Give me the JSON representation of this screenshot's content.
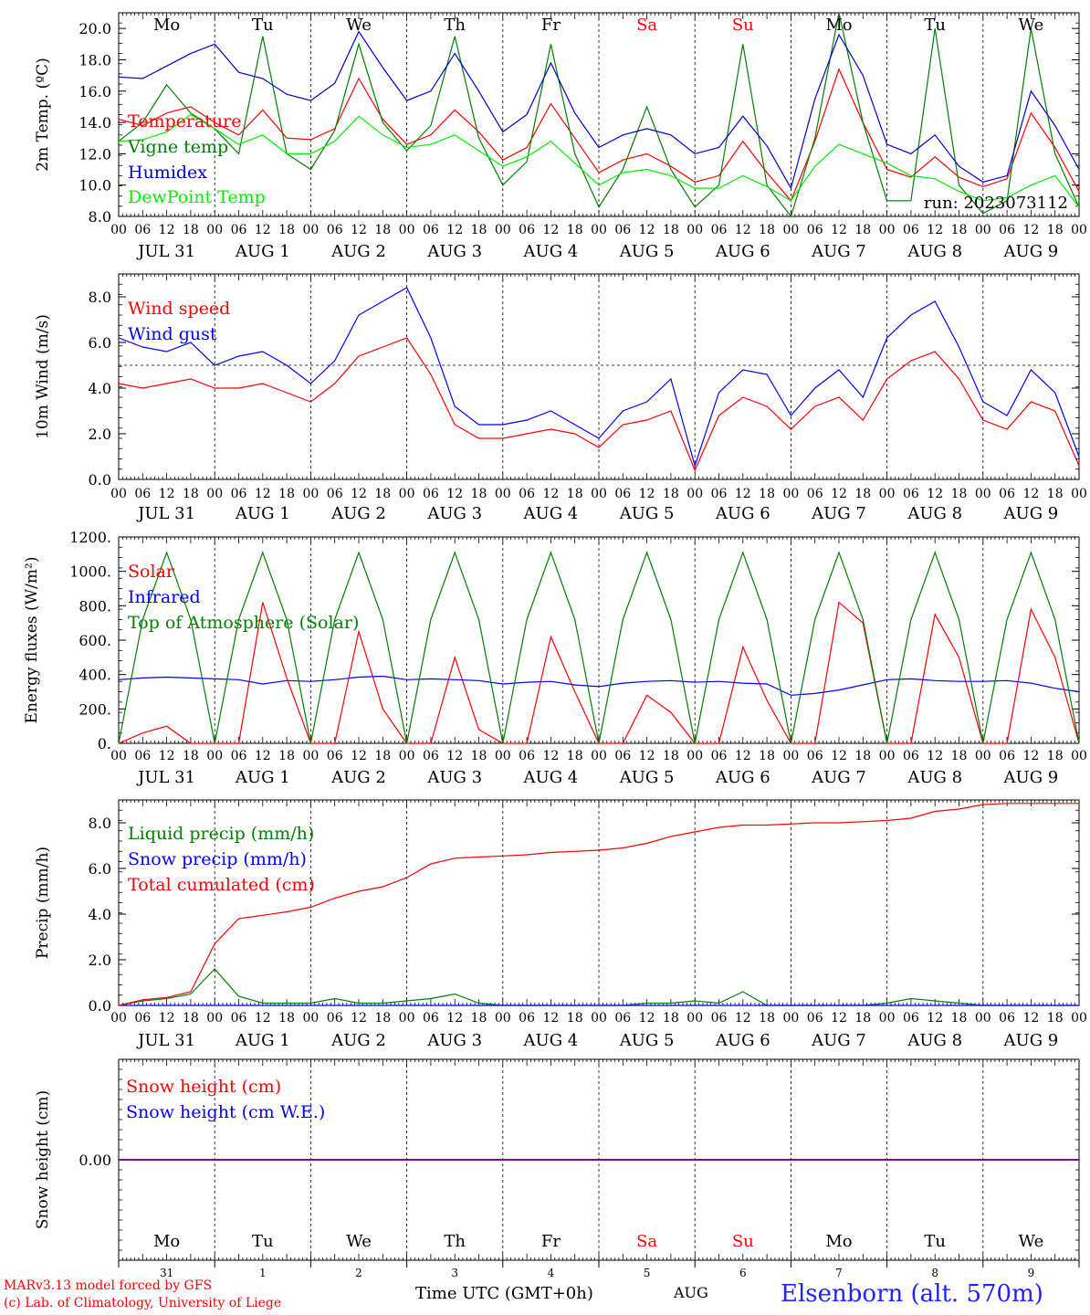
{
  "x_ticks": [
    "00",
    "06",
    "12",
    "18"
  ],
  "x_end_tick": "00",
  "date_labels": [
    "JUL 31",
    "AUG  1",
    "AUG  2",
    "AUG  3",
    "AUG  4",
    "AUG  5",
    "AUG  6",
    "AUG  7",
    "AUG  8",
    "AUG  9"
  ],
  "day_names": [
    {
      "label": "Mo",
      "color": "#000000"
    },
    {
      "label": "Tu",
      "color": "#000000"
    },
    {
      "label": "We",
      "color": "#000000"
    },
    {
      "label": "Th",
      "color": "#000000"
    },
    {
      "label": "Fr",
      "color": "#000000"
    },
    {
      "label": "Sa",
      "color": "#ff0000"
    },
    {
      "label": "Su",
      "color": "#ff0000"
    },
    {
      "label": "Mo",
      "color": "#000000"
    },
    {
      "label": "Tu",
      "color": "#000000"
    },
    {
      "label": "We",
      "color": "#000000"
    }
  ],
  "day_numbers": [
    "31",
    "1",
    "2",
    "3",
    "4",
    "5",
    "6",
    "7",
    "8",
    "9"
  ],
  "footer": {
    "credit_line1": "MARv3.13 model forced by GFS",
    "credit_line2": "(c) Lab. of Climatology, University of Liege",
    "time_label": "Time UTC (GMT+0h)",
    "month_label": "AUG",
    "station": "Elsenborn (alt. 570m)"
  },
  "chart_data": [
    {
      "type": "line",
      "ylabel": "2m Temp. (ºC)",
      "ylim": [
        8,
        21
      ],
      "yticks": [
        "8.0",
        "10.0",
        "12.0",
        "14.0",
        "16.0",
        "18.0",
        "20.0"
      ],
      "annotation": "run: 2023073112",
      "x": [
        0,
        6,
        12,
        18,
        24,
        30,
        36,
        42,
        48,
        54,
        60,
        66,
        72,
        78,
        84,
        90,
        96,
        102,
        108,
        114,
        120,
        126,
        132,
        138,
        144,
        150,
        156,
        162,
        168,
        174,
        180,
        186,
        192,
        198,
        204,
        210,
        216,
        222,
        228,
        234,
        240
      ],
      "series": [
        {
          "name": "Temperature",
          "color": "#ff0000",
          "values": [
            14.2,
            13.8,
            14.6,
            15.0,
            14.0,
            13.2,
            14.8,
            13.0,
            12.9,
            13.6,
            16.8,
            14.2,
            12.6,
            13.2,
            14.8,
            13.4,
            11.6,
            12.4,
            15.2,
            13.0,
            10.8,
            11.6,
            12.0,
            11.2,
            10.2,
            10.6,
            12.8,
            10.8,
            9.0,
            12.8,
            17.4,
            14.0,
            11.0,
            10.5,
            11.8,
            10.5,
            9.9,
            10.4,
            14.6,
            12.4,
            9.6
          ]
        },
        {
          "name": "Vigne temp",
          "color": "#008000",
          "values": [
            12.8,
            14.0,
            16.4,
            14.6,
            13.6,
            12.0,
            19.5,
            12.0,
            11.0,
            13.5,
            19.0,
            14.0,
            12.2,
            13.8,
            19.5,
            13.0,
            10.0,
            11.5,
            19.0,
            12.0,
            8.6,
            11.0,
            15.0,
            11.0,
            8.6,
            10.0,
            19.0,
            10.0,
            8.0,
            13.0,
            21.0,
            14.0,
            9.0,
            9.0,
            20.0,
            10.0,
            8.2,
            9.0,
            20.0,
            12.0,
            8.6
          ]
        },
        {
          "name": "Humidex",
          "color": "#0000cc",
          "values": [
            16.9,
            16.8,
            17.6,
            18.4,
            19.0,
            17.2,
            16.8,
            15.8,
            15.4,
            16.5,
            19.8,
            17.5,
            15.4,
            16.0,
            18.4,
            16.0,
            13.4,
            14.5,
            17.8,
            14.6,
            12.4,
            13.2,
            13.6,
            13.2,
            12.0,
            12.4,
            14.4,
            12.5,
            9.8,
            15.5,
            19.6,
            17.0,
            12.6,
            12.0,
            13.2,
            11.2,
            10.2,
            10.6,
            16.0,
            13.8,
            11.0
          ]
        },
        {
          "name": "DewPoint Temp",
          "color": "#00ee00",
          "values": [
            12.8,
            12.9,
            13.4,
            14.5,
            13.6,
            12.6,
            13.2,
            12.0,
            12.0,
            12.8,
            14.4,
            13.2,
            12.4,
            12.6,
            13.2,
            12.2,
            11.2,
            11.8,
            12.8,
            11.4,
            10.0,
            10.8,
            11.0,
            10.6,
            9.8,
            9.8,
            10.6,
            9.9,
            9.0,
            11.2,
            12.6,
            12.0,
            11.4,
            10.6,
            10.4,
            9.6,
            9.0,
            9.2,
            10.0,
            10.6,
            8.6
          ]
        }
      ]
    },
    {
      "type": "line",
      "ylabel": "10m Wind (m/s)",
      "ylim": [
        0,
        9
      ],
      "yticks": [
        "0.0",
        "2.0",
        "4.0",
        "6.0",
        "8.0"
      ],
      "reference_line": 5.0,
      "x": [
        0,
        6,
        12,
        18,
        24,
        30,
        36,
        42,
        48,
        54,
        60,
        66,
        72,
        78,
        84,
        90,
        96,
        102,
        108,
        114,
        120,
        126,
        132,
        138,
        144,
        150,
        156,
        162,
        168,
        174,
        180,
        186,
        192,
        198,
        204,
        210,
        216,
        222,
        228,
        234,
        240
      ],
      "series": [
        {
          "name": "Wind speed",
          "color": "#ff0000",
          "values": [
            4.2,
            4.0,
            4.2,
            4.4,
            4.0,
            4.0,
            4.2,
            3.8,
            3.4,
            4.2,
            5.4,
            5.8,
            6.2,
            4.6,
            2.4,
            1.8,
            1.8,
            2.0,
            2.2,
            2.0,
            1.4,
            2.4,
            2.6,
            3.0,
            0.4,
            2.8,
            3.6,
            3.2,
            2.2,
            3.2,
            3.6,
            2.6,
            4.4,
            5.2,
            5.6,
            4.4,
            2.6,
            2.2,
            3.4,
            3.0,
            0.6
          ]
        },
        {
          "name": "Wind gust",
          "color": "#0000ff",
          "values": [
            6.2,
            5.8,
            5.6,
            6.0,
            5.0,
            5.4,
            5.6,
            5.0,
            4.2,
            5.2,
            7.2,
            7.8,
            8.4,
            6.2,
            3.2,
            2.4,
            2.4,
            2.6,
            3.0,
            2.4,
            1.8,
            3.0,
            3.4,
            4.4,
            0.6,
            3.8,
            4.8,
            4.6,
            2.8,
            4.0,
            4.8,
            3.6,
            6.2,
            7.2,
            7.8,
            5.8,
            3.4,
            2.8,
            4.8,
            3.8,
            1.0
          ]
        }
      ]
    },
    {
      "type": "line",
      "ylabel": "Energy fluxes (W/m²)",
      "ylim": [
        0,
        1200
      ],
      "yticks": [
        "0.",
        "200.",
        "400.",
        "600.",
        "800.",
        "1000.",
        "1200."
      ],
      "x": [
        0,
        6,
        12,
        18,
        24,
        30,
        36,
        42,
        48,
        54,
        60,
        66,
        72,
        78,
        84,
        90,
        96,
        102,
        108,
        114,
        120,
        126,
        132,
        138,
        144,
        150,
        156,
        162,
        168,
        174,
        180,
        186,
        192,
        198,
        204,
        210,
        216,
        222,
        228,
        234,
        240
      ],
      "series": [
        {
          "name": "Solar",
          "color": "#ff0000",
          "values": [
            0,
            60,
            100,
            0,
            0,
            0,
            820,
            380,
            0,
            0,
            650,
            200,
            0,
            0,
            500,
            80,
            0,
            0,
            620,
            300,
            0,
            0,
            280,
            180,
            0,
            0,
            560,
            250,
            0,
            0,
            820,
            700,
            0,
            0,
            750,
            500,
            0,
            0,
            780,
            500,
            0
          ]
        },
        {
          "name": "Infrared",
          "color": "#0000ff",
          "values": [
            370,
            380,
            385,
            380,
            375,
            370,
            345,
            365,
            360,
            370,
            385,
            390,
            370,
            375,
            370,
            365,
            345,
            355,
            360,
            340,
            330,
            350,
            360,
            365,
            355,
            360,
            350,
            345,
            280,
            290,
            310,
            340,
            370,
            375,
            365,
            360,
            360,
            365,
            350,
            320,
            300
          ]
        },
        {
          "name": "Top of Atmosphere (Solar)",
          "color": "#008000",
          "values": [
            0,
            720,
            1110,
            720,
            0,
            720,
            1110,
            720,
            0,
            720,
            1110,
            720,
            0,
            720,
            1110,
            720,
            0,
            720,
            1110,
            720,
            0,
            720,
            1110,
            720,
            0,
            720,
            1110,
            720,
            0,
            720,
            1110,
            720,
            0,
            720,
            1110,
            720,
            0,
            720,
            1110,
            720,
            0
          ]
        }
      ]
    },
    {
      "type": "line",
      "ylabel": "Precip (mm/h)",
      "ylim": [
        0,
        9
      ],
      "yticks": [
        "0.0",
        "2.0",
        "4.0",
        "6.0",
        "8.0"
      ],
      "x": [
        0,
        6,
        12,
        18,
        24,
        30,
        36,
        42,
        48,
        54,
        60,
        66,
        72,
        78,
        84,
        90,
        96,
        102,
        108,
        114,
        120,
        126,
        132,
        138,
        144,
        150,
        156,
        162,
        168,
        174,
        180,
        186,
        192,
        198,
        204,
        210,
        216,
        222,
        228,
        234,
        240
      ],
      "series": [
        {
          "name": "Liquid precip (mm/h)",
          "color": "#008000",
          "values": [
            0,
            0.2,
            0.3,
            0.5,
            1.6,
            0.4,
            0.1,
            0.1,
            0.1,
            0.3,
            0.1,
            0.1,
            0.2,
            0.3,
            0.5,
            0.1,
            0,
            0,
            0,
            0,
            0,
            0,
            0.1,
            0.1,
            0.2,
            0.1,
            0.6,
            0,
            0,
            0,
            0,
            0,
            0.1,
            0.3,
            0.2,
            0.1,
            0,
            0,
            0,
            0,
            0
          ]
        },
        {
          "name": "Snow precip (mm/h)",
          "color": "#0000ff",
          "values": [
            0,
            0,
            0,
            0,
            0,
            0,
            0,
            0,
            0,
            0,
            0,
            0,
            0,
            0,
            0,
            0,
            0,
            0,
            0,
            0,
            0,
            0,
            0,
            0,
            0,
            0,
            0,
            0,
            0,
            0,
            0,
            0,
            0,
            0,
            0,
            0,
            0,
            0,
            0,
            0,
            0
          ]
        },
        {
          "name": "Total cumulated (cm)",
          "color": "#ff0000",
          "values": [
            0,
            0.25,
            0.35,
            0.6,
            2.7,
            3.8,
            3.95,
            4.1,
            4.3,
            4.7,
            5.0,
            5.2,
            5.6,
            6.2,
            6.45,
            6.5,
            6.55,
            6.6,
            6.7,
            6.75,
            6.8,
            6.9,
            7.1,
            7.4,
            7.6,
            7.8,
            7.9,
            7.9,
            7.95,
            8.0,
            8.0,
            8.05,
            8.1,
            8.2,
            8.5,
            8.6,
            8.8,
            8.85,
            8.85,
            8.85,
            8.85
          ]
        }
      ]
    },
    {
      "type": "line",
      "ylabel": "Snow height (cm)",
      "ylim": [
        -1,
        1
      ],
      "yticks": [
        "0.00"
      ],
      "x": [
        0,
        240
      ],
      "series": [
        {
          "name": "Snow height (cm)",
          "color": "#ff0000",
          "values": [
            0,
            0
          ]
        },
        {
          "name": "Snow height (cm W.E.)",
          "color": "#0000ff",
          "values": [
            0,
            0
          ]
        }
      ]
    }
  ]
}
